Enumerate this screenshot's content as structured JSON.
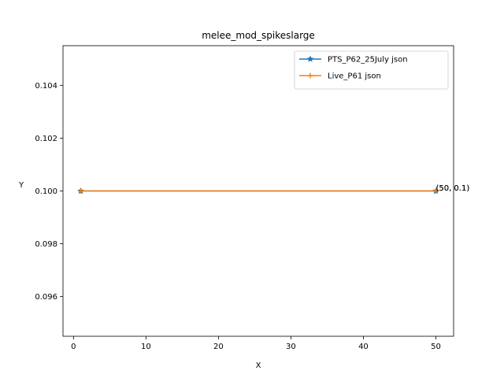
{
  "chart_data": {
    "type": "line",
    "title": "melee_mod_spikeslarge",
    "xlabel": "X",
    "ylabel": "Y",
    "xlim": [
      -1.45,
      52.45
    ],
    "ylim": [
      0.0945,
      0.1055
    ],
    "xticks": [
      0,
      10,
      20,
      30,
      40,
      50
    ],
    "xtick_labels": [
      "0",
      "10",
      "20",
      "30",
      "40",
      "50"
    ],
    "yticks": [
      0.096,
      0.098,
      0.1,
      0.102,
      0.104
    ],
    "ytick_labels": [
      "0.096",
      "0.098",
      "0.100",
      "0.102",
      "0.104"
    ],
    "grid": false,
    "legend_position": "top-right",
    "series": [
      {
        "name": "PTS_P62_25July json",
        "color": "#1f77b4",
        "marker": "star",
        "x": [
          1,
          50
        ],
        "y": [
          0.1,
          0.1
        ]
      },
      {
        "name": "Live_P61 json",
        "color": "#ff7f0e",
        "marker": "plus",
        "x": [
          1,
          50
        ],
        "y": [
          0.1,
          0.1
        ]
      }
    ],
    "annotations": [
      {
        "text": "(50, 0.1)",
        "x": 50,
        "y": 0.1
      },
      {
        "text": "(50, 0.1)",
        "x": 50,
        "y": 0.1
      }
    ]
  }
}
